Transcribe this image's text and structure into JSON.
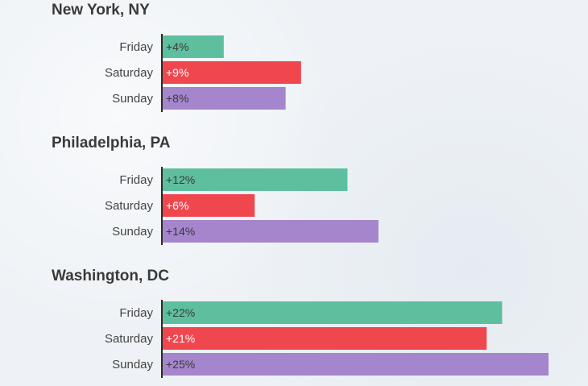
{
  "chart_data": [
    {
      "type": "bar",
      "orientation": "horizontal",
      "title": "New York, NY",
      "categories": [
        "Friday",
        "Saturday",
        "Sunday"
      ],
      "values": [
        4,
        9,
        8
      ],
      "value_labels": [
        "+4%",
        "+9%",
        "+8%"
      ],
      "unit": "%",
      "bar_colors": [
        "#5ebf9f",
        "#f0474f",
        "#a585cc"
      ],
      "label_colors": [
        "#3a3a3a",
        "#ffffff",
        "#3a3a3a"
      ],
      "xlim": [
        0,
        25
      ],
      "grid": false
    },
    {
      "type": "bar",
      "orientation": "horizontal",
      "title": "Philadelphia, PA",
      "categories": [
        "Friday",
        "Saturday",
        "Sunday"
      ],
      "values": [
        12,
        6,
        14
      ],
      "value_labels": [
        "+12%",
        "+6%",
        "+14%"
      ],
      "unit": "%",
      "bar_colors": [
        "#5ebf9f",
        "#f0474f",
        "#a585cc"
      ],
      "label_colors": [
        "#3a3a3a",
        "#ffffff",
        "#3a3a3a"
      ],
      "xlim": [
        0,
        25
      ],
      "grid": false
    },
    {
      "type": "bar",
      "orientation": "horizontal",
      "title": "Washington, DC",
      "categories": [
        "Friday",
        "Saturday",
        "Sunday"
      ],
      "values": [
        22,
        21,
        25
      ],
      "value_labels": [
        "+22%",
        "+21%",
        "+25%"
      ],
      "unit": "%",
      "bar_colors": [
        "#5ebf9f",
        "#f0474f",
        "#a585cc"
      ],
      "label_colors": [
        "#3a3a3a",
        "#ffffff",
        "#3a3a3a"
      ],
      "xlim": [
        0,
        25
      ],
      "grid": false
    }
  ]
}
